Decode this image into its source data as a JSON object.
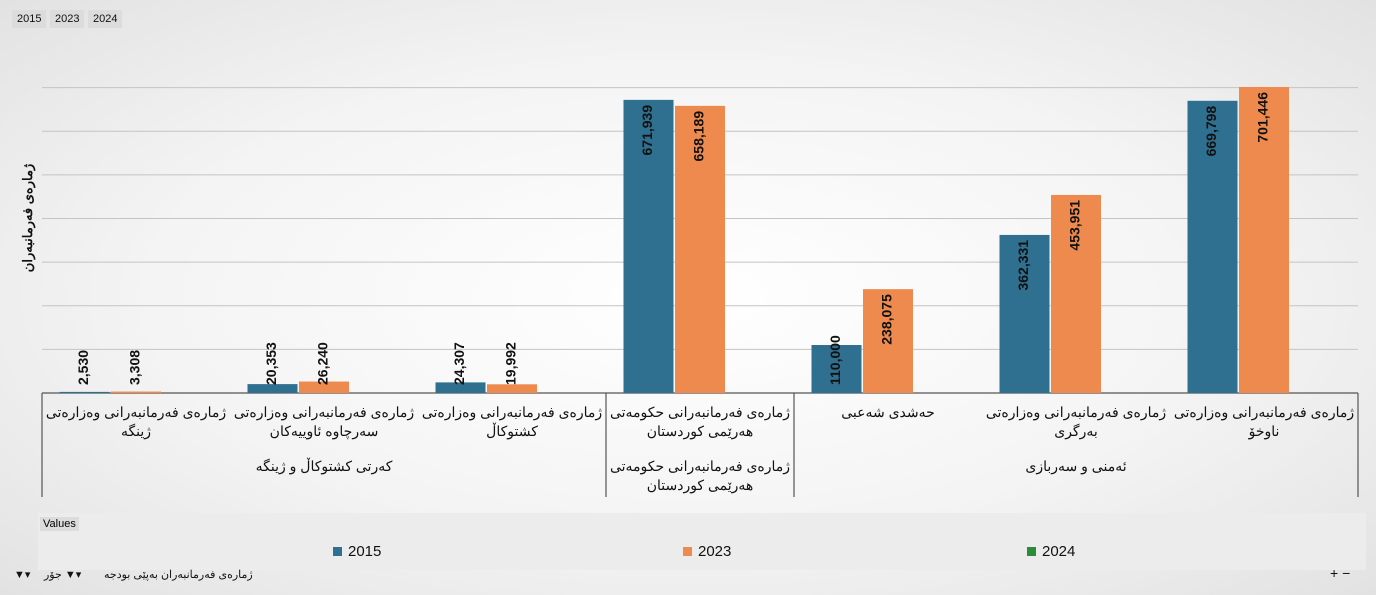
{
  "field_buttons": [
    "2015",
    "2023",
    "2024"
  ],
  "filters": [
    "جۆر",
    "ژمارەی فەرمانبەران بەپێی بودجە"
  ],
  "legend_title": "Values",
  "chart_data": {
    "type": "bar",
    "y_label": "ژمارەی فەرمانبەران",
    "groups": [
      {
        "label": "کەرتی کشتوکاڵ و ژینگە",
        "categories": [
          "ژمارەی فەرمانبەرانی وەزارەتی ژینگە",
          "ژمارەی فەرمانبەرانی وەزارەتی سەرچاوە ئاوییەکان",
          "ژمارەی فەرمانبەرانی وەزارەتی کشتوکاڵ"
        ]
      },
      {
        "label": "ژمارەی فەرمانبەرانی حکومەتی هەرێمی کوردستان",
        "categories": [
          "ژمارەی فەرمانبەرانی حکومەتی هەرێمی کوردستان"
        ]
      },
      {
        "label": "ئەمنی و سەربازی",
        "categories": [
          "حەشدی شەعبی",
          "ژمارەی فەرمانبەرانی وەزارەتی بەرگری",
          "ژمارەی فەرمانبەرانی وەزارەتی ناوخۆ"
        ]
      }
    ],
    "series": [
      {
        "name": "2015",
        "color": "#2f6f8f",
        "values": [
          2530,
          20353,
          24307,
          671939,
          110000,
          362331,
          669798
        ],
        "value_labels": [
          "2,530",
          "20,353",
          "24,307",
          "671,939",
          "110,000",
          "362,331",
          "669,798"
        ]
      },
      {
        "name": "2023",
        "color": "#ee8a4e",
        "values": [
          3308,
          26240,
          19992,
          658189,
          238075,
          453951,
          701446
        ],
        "value_labels": [
          "3,308",
          "26,240",
          "19,992",
          "658,189",
          "238,075",
          "453,951",
          "701,446"
        ]
      },
      {
        "name": "2024",
        "color": "#2e8b3a",
        "values": [
          null,
          null,
          null,
          null,
          null,
          null,
          null
        ]
      }
    ],
    "ylim": [
      0,
      800000
    ],
    "yticks": [
      0,
      100000,
      200000,
      300000,
      400000,
      500000,
      600000,
      700000
    ],
    "grid": true
  }
}
